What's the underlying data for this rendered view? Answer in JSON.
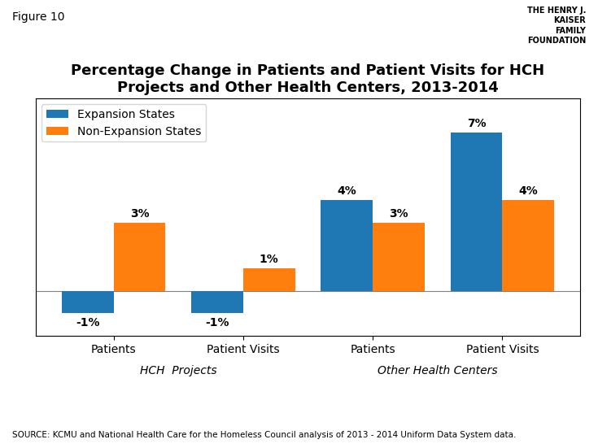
{
  "chart_data": {
    "type": "bar",
    "title": "Percentage Change in Patients and Patient Visits for HCH\nProjects and Other Health Centers, 2013-2014",
    "categories": [
      "Patients",
      "Patient Visits",
      "Patients",
      "Patient Visits"
    ],
    "group_labels": [
      "HCH  Projects",
      "HCH  Projects",
      "Other Health Centers",
      "Other Health Centers"
    ],
    "series": [
      {
        "name": "Expansion States",
        "values": [
          -1,
          -1,
          4,
          7
        ],
        "value_labels": [
          "-1%",
          "-1%",
          "4%",
          "7%"
        ]
      },
      {
        "name": "Non-Expansion States",
        "values": [
          3,
          1,
          3,
          4
        ],
        "value_labels": [
          "3%",
          "1%",
          "3%",
          "4%"
        ]
      }
    ],
    "ylim": [
      -2.0,
      8.5
    ],
    "data_labels": true,
    "tick_labels": "x",
    "legend": "upper left",
    "annotations": {
      "figure_label": "Figure 10",
      "source": "SOURCE: KCMU and National Health Care for the Homeless Council analysis of 2013 - 2014 Uniform Data System data.",
      "logo": [
        "THE HENRY J.",
        "KAISER",
        "FAMILY",
        "FOUNDATION"
      ]
    }
  }
}
